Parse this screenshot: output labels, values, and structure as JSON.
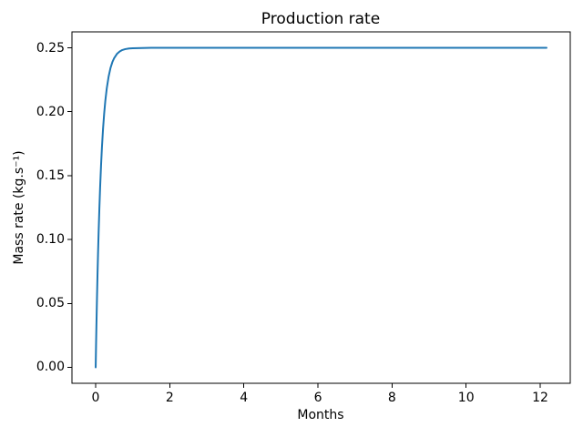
{
  "figure": {
    "background": "#ffffff",
    "text_color": "#000000"
  },
  "chart_data": {
    "type": "line",
    "title": "Production rate",
    "xlabel": "Months",
    "ylabel": "Mass rate (kg.s⁻¹)",
    "grid": false,
    "xlim": [
      -0.64,
      12.81
    ],
    "ylim": [
      -0.0125,
      0.2625
    ],
    "x_ticks": [
      {
        "label": "0",
        "value": 0
      },
      {
        "label": "2",
        "value": 2
      },
      {
        "label": "4",
        "value": 4
      },
      {
        "label": "6",
        "value": 6
      },
      {
        "label": "8",
        "value": 8
      },
      {
        "label": "10",
        "value": 10
      },
      {
        "label": "12",
        "value": 12
      }
    ],
    "y_ticks": [
      {
        "label": "0.00",
        "value": 0.0
      },
      {
        "label": "0.05",
        "value": 0.05
      },
      {
        "label": "0.10",
        "value": 0.1
      },
      {
        "label": "0.15",
        "value": 0.15
      },
      {
        "label": "0.20",
        "value": 0.2
      },
      {
        "label": "0.25",
        "value": 0.25
      }
    ],
    "series": [
      {
        "name": "Production rate",
        "color": "#1f77b4",
        "saturation_value": 0.25,
        "x": [
          0,
          0.01,
          0.02,
          0.035,
          0.05,
          0.065,
          0.08,
          0.1,
          0.12,
          0.145,
          0.17,
          0.2,
          0.23,
          0.26,
          0.3,
          0.35,
          0.4,
          0.45,
          0.5,
          0.575,
          0.65,
          0.72,
          0.8,
          0.9,
          1.0,
          1.25,
          1.5,
          2.0,
          2.5,
          3.0,
          4.0,
          5.0,
          6.0,
          7.0,
          8.0,
          9.0,
          10.0,
          11.0,
          12.0,
          12.17
        ],
        "y": [
          0,
          0.0167,
          0.0322,
          0.0536,
          0.073,
          0.0903,
          0.106,
          0.1246,
          0.1408,
          0.158,
          0.1726,
          0.1871,
          0.1988,
          0.2084,
          0.2184,
          0.2276,
          0.2342,
          0.2388,
          0.242,
          0.2453,
          0.2472,
          0.2483,
          0.249,
          0.2495,
          0.2497,
          0.2499,
          0.25,
          0.25,
          0.25,
          0.25,
          0.25,
          0.25,
          0.25,
          0.25,
          0.25,
          0.25,
          0.25,
          0.25,
          0.25,
          0.25
        ]
      }
    ]
  }
}
